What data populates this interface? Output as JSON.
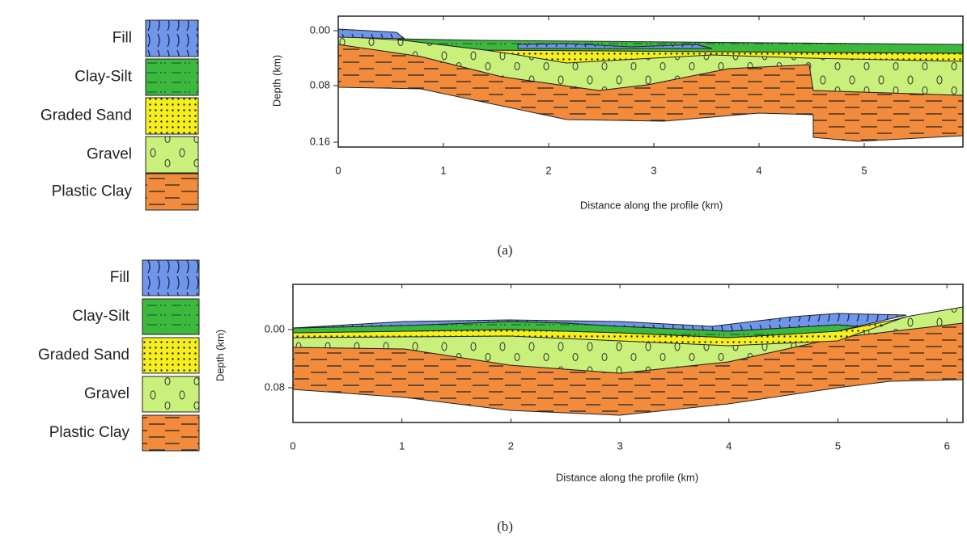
{
  "panels": [
    {
      "legend": [
        "Fill",
        "Clay-Silt",
        "Graded Sand",
        "Gravel",
        "Plastic Clay"
      ],
      "y_axis_label": "Depth (km)",
      "y_ticks": [
        "0.00",
        "0.08",
        "0.16"
      ],
      "x_axis_label": "Distance along the profile (km)",
      "x_ticks": [
        "0",
        "1",
        "2",
        "3",
        "4",
        "5"
      ],
      "caption": "(a)"
    },
    {
      "legend": [
        "Fill",
        "Clay-Silt",
        "Graded Sand",
        "Gravel",
        "Plastic Clay"
      ],
      "y_axis_label": "Depth (km)",
      "y_ticks": [
        "0.00",
        "0.08"
      ],
      "x_axis_label": "Distance along the profile (km)",
      "x_ticks": [
        "0",
        "1",
        "2",
        "3",
        "4",
        "5",
        "6"
      ],
      "caption": "(b)"
    }
  ]
}
